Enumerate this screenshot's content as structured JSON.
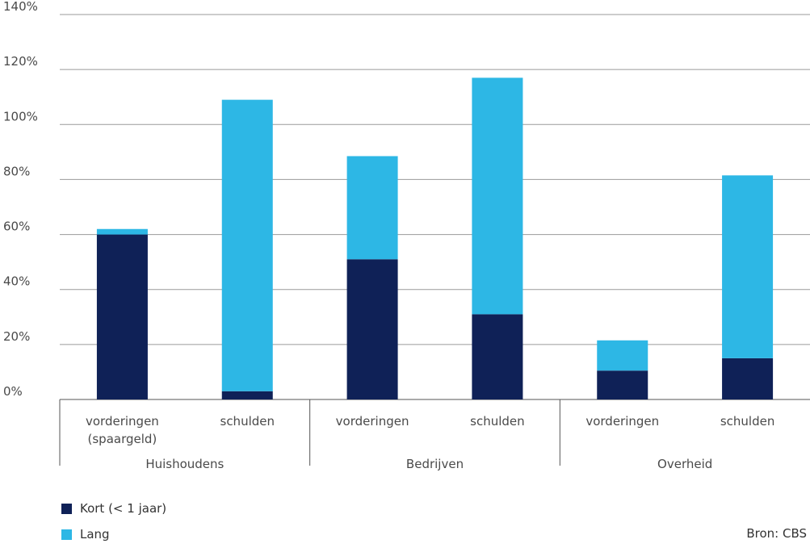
{
  "chart_data": {
    "type": "bar",
    "stacked": true,
    "yticks": [
      "0%",
      "20%",
      "40%",
      "60%",
      "80%",
      "100%",
      "120%",
      "140%"
    ],
    "ylim": [
      0,
      140
    ],
    "grid": true,
    "groups": [
      {
        "name": "Huishoudens",
        "categories": [
          {
            "label": [
              "vorderingen",
              "(spaargeld)"
            ],
            "kort": 60,
            "lang": 2
          },
          {
            "label": [
              "schulden"
            ],
            "kort": 3,
            "lang": 106
          }
        ]
      },
      {
        "name": "Bedrijven",
        "categories": [
          {
            "label": [
              "vorderingen"
            ],
            "kort": 51,
            "lang": 37.5
          },
          {
            "label": [
              "schulden"
            ],
            "kort": 31,
            "lang": 86
          }
        ]
      },
      {
        "name": "Overheid",
        "categories": [
          {
            "label": [
              "vorderingen"
            ],
            "kort": 10.5,
            "lang": 11
          },
          {
            "label": [
              "schulden"
            ],
            "kort": 15,
            "lang": 66.5
          }
        ]
      }
    ],
    "series": [
      {
        "name": "Kort (< 1 jaar)",
        "key": "kort",
        "color": "#0f2157"
      },
      {
        "name": "Lang",
        "key": "lang",
        "color": "#2db7e5"
      }
    ],
    "legend_position": "bottom-left"
  },
  "legend": {
    "kort": "Kort (< 1 jaar)",
    "lang": "Lang"
  },
  "source": "Bron: CBS"
}
